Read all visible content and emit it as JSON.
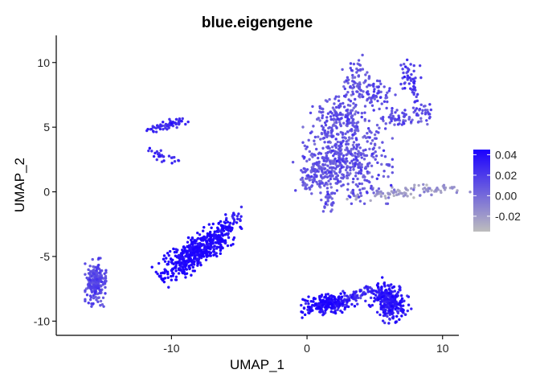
{
  "chart_data": {
    "type": "scatter",
    "title": "blue.eigengene",
    "xlabel": "UMAP_1",
    "ylabel": "UMAP_2",
    "xlim": [
      -18.5,
      11.2
    ],
    "ylim": [
      -11.1,
      12.1
    ],
    "x_ticks": [
      {
        "value": -10,
        "label": "-10"
      },
      {
        "value": 0,
        "label": "0"
      },
      {
        "value": 10,
        "label": "10"
      }
    ],
    "y_ticks": [
      {
        "value": 10,
        "label": "10"
      },
      {
        "value": 5,
        "label": "5"
      },
      {
        "value": 0,
        "label": "0"
      },
      {
        "value": -5,
        "label": "-5"
      },
      {
        "value": -10,
        "label": "-10"
      }
    ],
    "grid": false,
    "color_scale": {
      "low_color": "#bdbdbd",
      "high_color": "#1a00ff",
      "min": -0.035,
      "max": 0.045,
      "ticks": [
        {
          "value": 0.04,
          "label": "0.04"
        },
        {
          "value": 0.02,
          "label": "0.02"
        },
        {
          "value": 0.0,
          "label": "0.00"
        },
        {
          "value": -0.02,
          "label": "-0.02"
        }
      ],
      "legend_position": "right"
    },
    "clusters": [
      {
        "cx": -8.0,
        "cy": -4.5,
        "sx": 1.6,
        "sy": 0.55,
        "angle": 38,
        "n": 520,
        "value_mean": 0.04,
        "value_sd": 0.004
      },
      {
        "cx": -5.9,
        "cy": -2.6,
        "sx": 0.8,
        "sy": 0.25,
        "angle": 45,
        "n": 50,
        "value_mean": 0.03,
        "value_sd": 0.006
      },
      {
        "cx": -10.4,
        "cy": 5.15,
        "sx": 0.75,
        "sy": 0.18,
        "angle": 12,
        "n": 65,
        "value_mean": 0.025,
        "value_sd": 0.006
      },
      {
        "cx": -10.7,
        "cy": 2.7,
        "sx": 0.6,
        "sy": 0.18,
        "angle": -28,
        "n": 28,
        "value_mean": 0.026,
        "value_sd": 0.006
      },
      {
        "cx": -15.6,
        "cy": -7.0,
        "sx": 0.35,
        "sy": 0.85,
        "angle": 0,
        "n": 210,
        "value_mean": 0.012,
        "value_sd": 0.006
      },
      {
        "cx": 1.5,
        "cy": -8.7,
        "sx": 0.9,
        "sy": 0.35,
        "angle": 8,
        "n": 220,
        "value_mean": 0.038,
        "value_sd": 0.006
      },
      {
        "cx": 3.4,
        "cy": -8.1,
        "sx": 0.9,
        "sy": 0.3,
        "angle": 22,
        "n": 70,
        "value_mean": 0.022,
        "value_sd": 0.007
      },
      {
        "cx": 6.0,
        "cy": -8.4,
        "sx": 0.75,
        "sy": 0.6,
        "angle": -50,
        "n": 290,
        "value_mean": 0.032,
        "value_sd": 0.007
      },
      {
        "cx": 3.0,
        "cy": 2.6,
        "sx": 1.5,
        "sy": 1.6,
        "angle": 0,
        "n": 420,
        "value_mean": 0.008,
        "value_sd": 0.007
      },
      {
        "cx": 0.9,
        "cy": 1.4,
        "sx": 0.9,
        "sy": 0.7,
        "angle": 0,
        "n": 130,
        "value_mean": 0.006,
        "value_sd": 0.006
      },
      {
        "cx": 2.3,
        "cy": 5.6,
        "sx": 0.9,
        "sy": 0.8,
        "angle": 0,
        "n": 150,
        "value_mean": 0.008,
        "value_sd": 0.006
      },
      {
        "cx": 3.6,
        "cy": 8.6,
        "sx": 0.45,
        "sy": 0.9,
        "angle": 0,
        "n": 75,
        "value_mean": 0.006,
        "value_sd": 0.006
      },
      {
        "cx": 5.2,
        "cy": 7.6,
        "sx": 0.6,
        "sy": 0.6,
        "angle": 0,
        "n": 60,
        "value_mean": 0.012,
        "value_sd": 0.007
      },
      {
        "cx": 7.7,
        "cy": 8.7,
        "sx": 0.35,
        "sy": 0.8,
        "angle": 0,
        "n": 55,
        "value_mean": 0.018,
        "value_sd": 0.007
      },
      {
        "cx": 6.9,
        "cy": 5.7,
        "sx": 0.9,
        "sy": 0.28,
        "angle": 0,
        "n": 55,
        "value_mean": 0.01,
        "value_sd": 0.007
      },
      {
        "cx": 8.5,
        "cy": 6.3,
        "sx": 0.4,
        "sy": 0.4,
        "angle": 0,
        "n": 25,
        "value_mean": 0.012,
        "value_sd": 0.006
      },
      {
        "cx": 1.6,
        "cy": -0.6,
        "sx": 0.25,
        "sy": 0.45,
        "angle": 0,
        "n": 25,
        "value_mean": 0.006,
        "value_sd": 0.006
      },
      {
        "cx": 7.4,
        "cy": 0.0,
        "sx": 2.1,
        "sy": 0.22,
        "angle": 4,
        "n": 100,
        "value_mean": -0.018,
        "value_sd": 0.007
      }
    ]
  }
}
